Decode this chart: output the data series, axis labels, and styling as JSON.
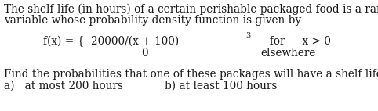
{
  "bg_color": "#ffffff",
  "text_color": "#1a1a1a",
  "line1": "The shelf life (in hours) of a certain perishable packaged food is a random",
  "line2": "variable whose probability density function is given by",
  "fx_prefix": "f(x) = {  20000/(x + 100)",
  "superscript": "3",
  "for_part": "     for     x > 0",
  "zero_part": "0",
  "elsewhere_part": "elsewhere",
  "line_find": "Find the probabilities that one of these packages will have a shelf life of",
  "part_a": "a)   at most 200 hours",
  "part_b": "b) at least 100 hours",
  "font_size": 9.8,
  "font_size_super": 7.0,
  "font_family": "serif"
}
